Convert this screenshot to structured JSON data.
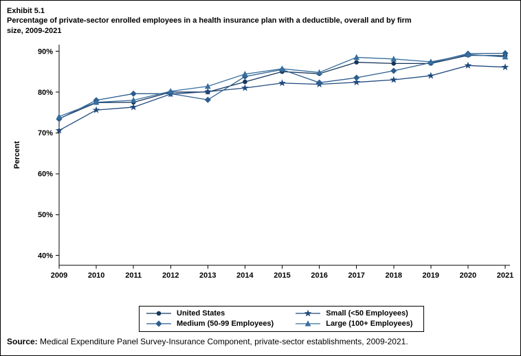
{
  "source": {
    "label": "Source:",
    "text": "Medical Expenditure Panel Survey-Insurance Component, private-sector establishments, 2009-2021."
  },
  "chart_data": {
    "type": "line",
    "exhibit_label": "Exhibit 5.1",
    "title": "Percentage of private-sector enrolled employees in a health insurance plan with a deductible, overall and by firm size, 2009-2021",
    "ylabel": "Percent",
    "xlabel": "",
    "x": [
      2009,
      2010,
      2011,
      2012,
      2013,
      2014,
      2015,
      2016,
      2017,
      2018,
      2019,
      2020,
      2021
    ],
    "ylim": [
      40,
      90
    ],
    "ytick_step": 10,
    "ytick_suffix": "%",
    "grid": false,
    "legend_position": "bottom",
    "series": [
      {
        "name": "United States",
        "marker": "circle",
        "color": "#16365c",
        "values": [
          73.5,
          77.4,
          77.5,
          80.0,
          80.0,
          82.5,
          85.0,
          84.5,
          87.3,
          87.0,
          87.0,
          89.0,
          88.9
        ]
      },
      {
        "name": "Small (<50 Employees)",
        "marker": "star",
        "color": "#1f497d",
        "values": [
          70.6,
          75.6,
          76.3,
          79.5,
          80.1,
          81.0,
          82.2,
          81.9,
          82.4,
          83.0,
          84.0,
          86.5,
          86.1
        ]
      },
      {
        "name": "Medium (50-99 Employees)",
        "marker": "diamond",
        "color": "#2c5d8f",
        "values": [
          73.4,
          78.0,
          79.6,
          79.6,
          78.1,
          83.8,
          85.5,
          82.3,
          83.5,
          85.2,
          87.2,
          89.4,
          89.5
        ]
      },
      {
        "name": "Large (100+ Employees)",
        "marker": "triangle",
        "color": "#376f9e",
        "values": [
          74.0,
          77.5,
          78.0,
          80.2,
          81.4,
          84.4,
          85.7,
          84.8,
          88.5,
          88.1,
          87.4,
          89.2,
          88.6
        ]
      }
    ]
  }
}
